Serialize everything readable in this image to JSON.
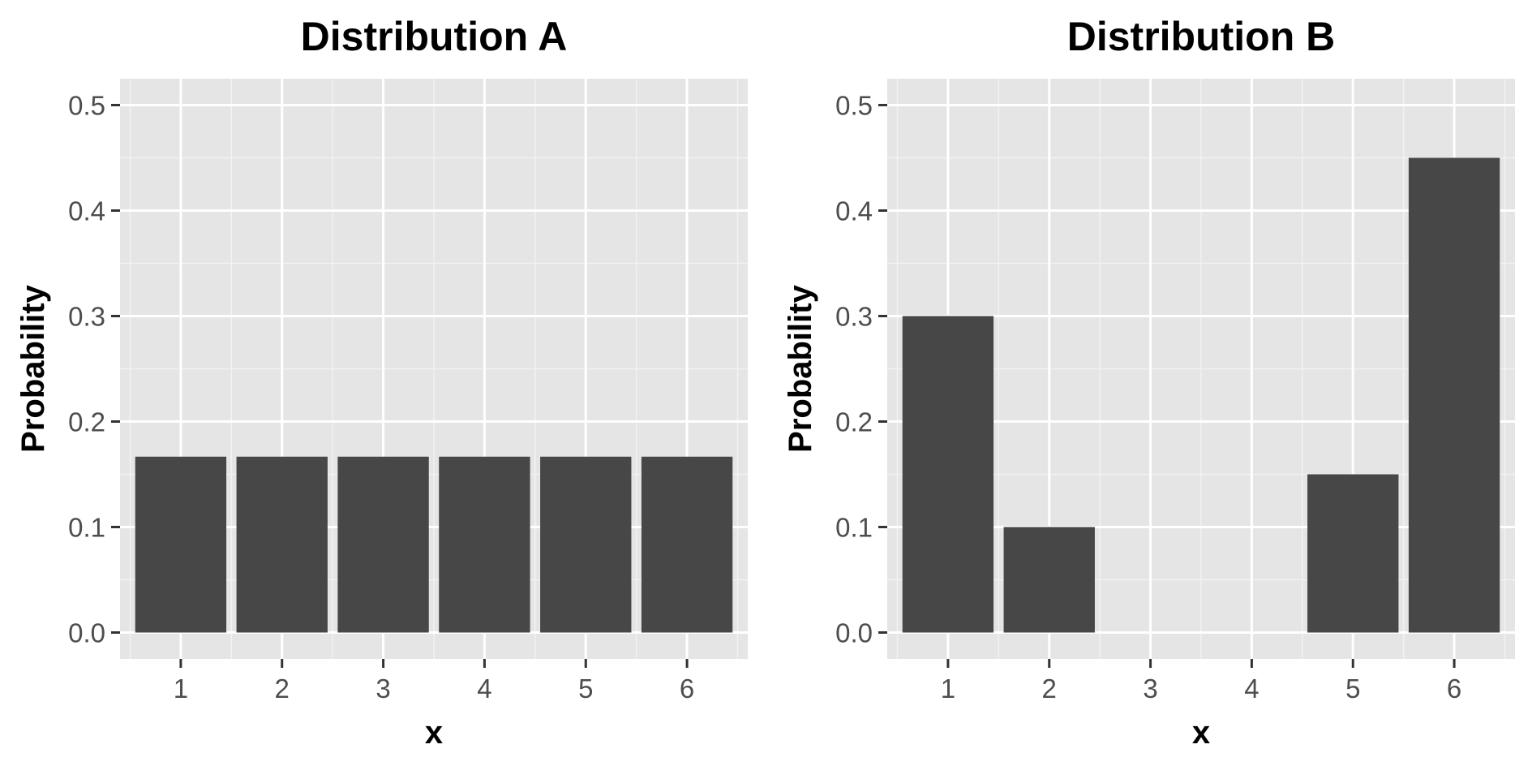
{
  "colors": {
    "panel_background": "#e5e5e5",
    "grid_major": "#ffffff",
    "grid_minor": "#f2f2f2",
    "bar_fill": "#474747",
    "tick_color": "#333333",
    "tick_label_color": "#4d4d4d",
    "title_color": "#000000"
  },
  "chart_data": [
    {
      "type": "bar",
      "title": "Distribution A",
      "xlabel": "x",
      "ylabel": "Probability",
      "categories": [
        "1",
        "2",
        "3",
        "4",
        "5",
        "6"
      ],
      "values": [
        0.1667,
        0.1667,
        0.1667,
        0.1667,
        0.1667,
        0.1667
      ],
      "ylim": [
        0,
        0.5
      ],
      "yticks": [
        "0.0",
        "0.1",
        "0.2",
        "0.3",
        "0.4",
        "0.5"
      ],
      "grid": true,
      "legend": "none"
    },
    {
      "type": "bar",
      "title": "Distribution B",
      "xlabel": "x",
      "ylabel": "Probability",
      "categories": [
        "1",
        "2",
        "3",
        "4",
        "5",
        "6"
      ],
      "values": [
        0.3,
        0.1,
        0.0,
        0.0,
        0.15,
        0.45
      ],
      "ylim": [
        0,
        0.5
      ],
      "yticks": [
        "0.0",
        "0.1",
        "0.2",
        "0.3",
        "0.4",
        "0.5"
      ],
      "grid": true,
      "legend": "none"
    }
  ]
}
